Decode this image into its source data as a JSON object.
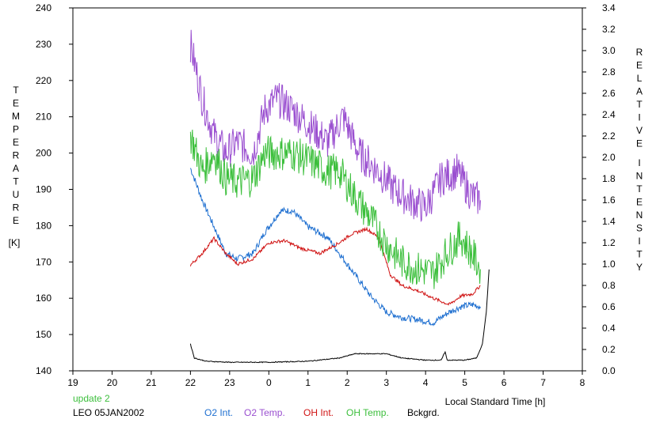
{
  "chart_data": {
    "type": "line",
    "x_axis": {
      "label": "Local Standard Time [h]",
      "ticks": [
        19,
        20,
        21,
        22,
        23,
        0,
        1,
        2,
        3,
        4,
        5,
        6,
        7,
        8
      ],
      "range_hours_from_19": [
        0,
        13
      ]
    },
    "y_left": {
      "label_letters": [
        "T",
        "E",
        "M",
        "P",
        "E",
        "R",
        "A",
        "T",
        "U",
        "R",
        "E"
      ],
      "unit": "[K]",
      "ticks": [
        "140",
        "150",
        "160",
        "170",
        "180",
        "190",
        "200",
        "210",
        "220",
        "230",
        "240"
      ],
      "range": [
        140,
        240
      ]
    },
    "y_right": {
      "label_word1": [
        "R",
        "E",
        "L",
        "A",
        "T",
        "I",
        "V",
        "E"
      ],
      "label_word2": [
        "I",
        "N",
        "T",
        "E",
        "N",
        "S",
        "I",
        "T",
        "Y"
      ],
      "ticks": [
        "0.0",
        "0.2",
        "0.4",
        "0.6",
        "0.8",
        "1.0",
        "1.2",
        "1.4",
        "1.6",
        "1.8",
        "2.0",
        "2.2",
        "2.4",
        "2.6",
        "2.8",
        "3.0",
        "3.2",
        "3.4"
      ],
      "range": [
        0,
        3.4
      ]
    },
    "annotations": {
      "update": "update 2",
      "station": "LEO 05JAN2002"
    },
    "legend_placement": "bottom",
    "series": [
      {
        "name": "O2 Int.",
        "axis": "right",
        "color": "#1e6fd0",
        "noise": 0.03,
        "points": [
          [
            22.0,
            1.9
          ],
          [
            22.3,
            1.6
          ],
          [
            22.6,
            1.35
          ],
          [
            22.9,
            1.1
          ],
          [
            23.2,
            1.05
          ],
          [
            23.6,
            1.1
          ],
          [
            23.9,
            1.3
          ],
          [
            24.3,
            1.5
          ],
          [
            24.6,
            1.5
          ],
          [
            25.0,
            1.35
          ],
          [
            25.5,
            1.25
          ],
          [
            25.8,
            1.1
          ],
          [
            26.2,
            0.9
          ],
          [
            26.6,
            0.7
          ],
          [
            27.0,
            0.55
          ],
          [
            27.4,
            0.5
          ],
          [
            27.8,
            0.48
          ],
          [
            28.2,
            0.45
          ],
          [
            28.6,
            0.55
          ],
          [
            28.9,
            0.6
          ],
          [
            29.2,
            0.62
          ],
          [
            29.4,
            0.6
          ]
        ]
      },
      {
        "name": "O2 Temp.",
        "axis": "left",
        "color": "#9a4fd0",
        "noise": 5,
        "points": [
          [
            22.0,
            230
          ],
          [
            22.3,
            215
          ],
          [
            22.6,
            205
          ],
          [
            22.9,
            200
          ],
          [
            23.2,
            203
          ],
          [
            23.6,
            200
          ],
          [
            23.9,
            212
          ],
          [
            24.2,
            215
          ],
          [
            24.6,
            212
          ],
          [
            25.0,
            208
          ],
          [
            25.5,
            203
          ],
          [
            25.9,
            210
          ],
          [
            26.3,
            200
          ],
          [
            26.8,
            195
          ],
          [
            27.2,
            190
          ],
          [
            27.6,
            187
          ],
          [
            28.0,
            185
          ],
          [
            28.4,
            193
          ],
          [
            28.8,
            195
          ],
          [
            29.2,
            188
          ],
          [
            29.4,
            187
          ]
        ]
      },
      {
        "name": "OH Int.",
        "axis": "right",
        "color": "#d01414",
        "noise": 0.015,
        "points": [
          [
            22.0,
            0.99
          ],
          [
            22.3,
            1.1
          ],
          [
            22.6,
            1.24
          ],
          [
            22.9,
            1.1
          ],
          [
            23.2,
            1.0
          ],
          [
            23.6,
            1.05
          ],
          [
            24.0,
            1.2
          ],
          [
            24.4,
            1.22
          ],
          [
            24.8,
            1.15
          ],
          [
            25.3,
            1.1
          ],
          [
            25.8,
            1.2
          ],
          [
            26.1,
            1.28
          ],
          [
            26.5,
            1.33
          ],
          [
            26.8,
            1.25
          ],
          [
            27.1,
            0.9
          ],
          [
            27.4,
            0.8
          ],
          [
            27.8,
            0.75
          ],
          [
            28.2,
            0.68
          ],
          [
            28.6,
            0.62
          ],
          [
            28.9,
            0.7
          ],
          [
            29.2,
            0.72
          ],
          [
            29.4,
            0.8
          ]
        ]
      },
      {
        "name": "OH Temp.",
        "axis": "left",
        "color": "#3cbf3c",
        "noise": 5,
        "points": [
          [
            22.0,
            205
          ],
          [
            22.3,
            195
          ],
          [
            22.6,
            200
          ],
          [
            22.9,
            193
          ],
          [
            23.2,
            192
          ],
          [
            23.6,
            193
          ],
          [
            23.9,
            200
          ],
          [
            24.3,
            200
          ],
          [
            24.6,
            200
          ],
          [
            25.0,
            198
          ],
          [
            25.5,
            195
          ],
          [
            25.8,
            195
          ],
          [
            26.2,
            188
          ],
          [
            26.6,
            182
          ],
          [
            27.0,
            175
          ],
          [
            27.4,
            170
          ],
          [
            27.8,
            168
          ],
          [
            28.2,
            167
          ],
          [
            28.5,
            172
          ],
          [
            28.9,
            177
          ],
          [
            29.2,
            172
          ],
          [
            29.4,
            168
          ]
        ]
      },
      {
        "name": "Bckgrd.",
        "axis": "right",
        "color": "#000000",
        "noise": 0.004,
        "points": [
          [
            22.0,
            0.25
          ],
          [
            22.1,
            0.12
          ],
          [
            22.4,
            0.09
          ],
          [
            23.0,
            0.08
          ],
          [
            24.0,
            0.08
          ],
          [
            25.0,
            0.09
          ],
          [
            25.8,
            0.12
          ],
          [
            26.2,
            0.16
          ],
          [
            27.0,
            0.16
          ],
          [
            27.4,
            0.12
          ],
          [
            28.0,
            0.1
          ],
          [
            28.4,
            0.1
          ],
          [
            28.5,
            0.18
          ],
          [
            28.55,
            0.1
          ],
          [
            29.0,
            0.1
          ],
          [
            29.3,
            0.12
          ],
          [
            29.45,
            0.25
          ],
          [
            29.55,
            0.55
          ],
          [
            29.62,
            0.95
          ]
        ]
      }
    ]
  }
}
